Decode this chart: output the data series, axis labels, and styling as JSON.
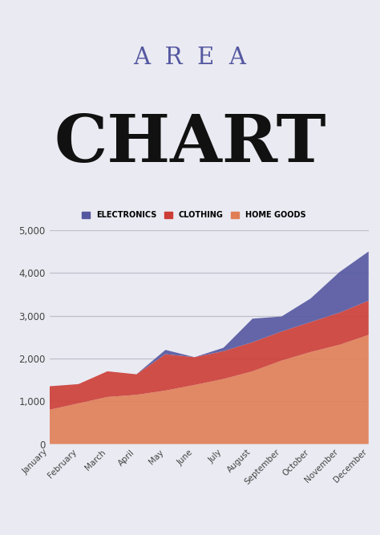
{
  "title_area": "A  R  E  A",
  "title_chart": "CHART",
  "background_color": "#eaeaf2",
  "months": [
    "January",
    "February",
    "March",
    "April",
    "May",
    "June",
    "July",
    "August",
    "September",
    "October",
    "November",
    "December"
  ],
  "home_goods": [
    800,
    950,
    1100,
    1150,
    1250,
    1380,
    1520,
    1700,
    1950,
    2150,
    2320,
    2550
  ],
  "clothing": [
    550,
    450,
    600,
    480,
    850,
    650,
    650,
    680,
    680,
    700,
    750,
    800
  ],
  "electronics": [
    0,
    0,
    0,
    0,
    100,
    0,
    80,
    550,
    350,
    550,
    950,
    1150
  ],
  "legend_labels": [
    "ELECTRONICS",
    "CLOTHING",
    "HOME GOODS"
  ],
  "colors": {
    "electronics": "#5457a0",
    "clothing": "#cc3d35",
    "home_goods": "#e07f55"
  },
  "ylim": [
    0,
    5000
  ],
  "yticks": [
    0,
    1000,
    2000,
    3000,
    4000,
    5000
  ],
  "grid_color": "#c0c0cc",
  "title_area_color": "#5457a0",
  "title_chart_color": "#111111"
}
